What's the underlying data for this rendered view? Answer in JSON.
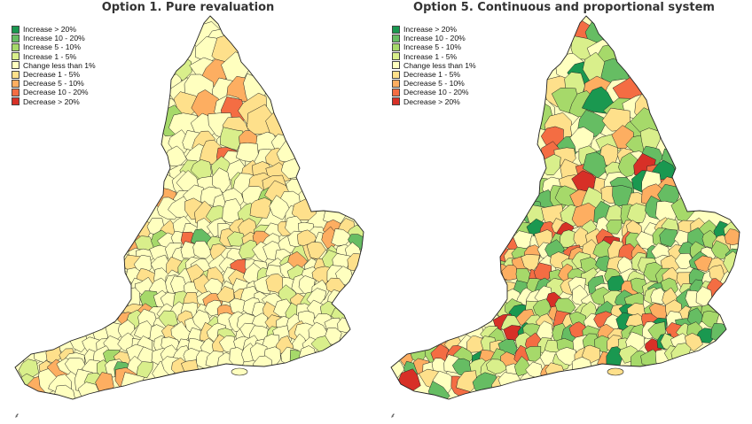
{
  "panels": [
    {
      "id": "left",
      "title": "Option 1. Pure revaluation"
    },
    {
      "id": "right",
      "title": "Option 5. Continuous and proportional system"
    }
  ],
  "legend": [
    {
      "label": "Increase > 20%",
      "color": "#1a9850"
    },
    {
      "label": "Increase 10 - 20%",
      "color": "#66bd63"
    },
    {
      "label": "Increase 5 - 10%",
      "color": "#a6d96a"
    },
    {
      "label": "Increase 1 - 5%",
      "color": "#d9ef8b"
    },
    {
      "label": "Change less than 1%",
      "color": "#ffffbf"
    },
    {
      "label": "Decrease 1 - 5%",
      "color": "#fee08b"
    },
    {
      "label": "Decrease 5 - 10%",
      "color": "#fdae61"
    },
    {
      "label": "Decrease 10 - 20%",
      "color": "#f46d43"
    },
    {
      "label": "Decrease > 20%",
      "color": "#d73027"
    }
  ],
  "colors": {
    "border": "#222222",
    "background": "#ffffff"
  }
}
